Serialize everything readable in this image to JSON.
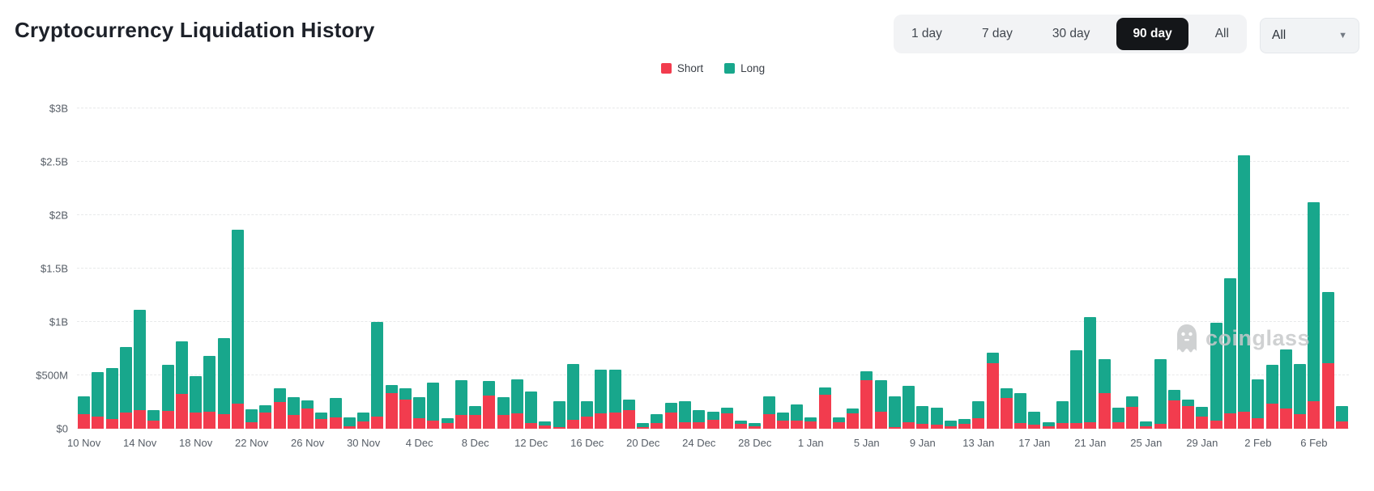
{
  "header": {
    "title": "Cryptocurrency Liquidation History",
    "range_buttons": [
      {
        "label": "1 day",
        "selected": false
      },
      {
        "label": "7 day",
        "selected": false
      },
      {
        "label": "30 day",
        "selected": false
      },
      {
        "label": "90 day",
        "selected": true
      },
      {
        "label": "All",
        "selected": false
      }
    ],
    "filter_dropdown": {
      "value": "All"
    }
  },
  "legend": [
    {
      "label": "Short",
      "color": "#f23c4e"
    },
    {
      "label": "Long",
      "color": "#18a78c"
    }
  ],
  "watermark": {
    "text": "coinglass"
  },
  "chart_data": {
    "type": "bar",
    "stacked": true,
    "title": "Cryptocurrency Liquidation History",
    "unit": "USD millions",
    "ylim": [
      0,
      3000
    ],
    "grid": "horizontal-dashed",
    "legend_position": "top-center",
    "y_ticks": [
      "$0",
      "$500M",
      "$1B",
      "$1.5B",
      "$2B",
      "$2.5B",
      "$3B"
    ],
    "x_tick_every": 4,
    "x_tick_labels": [
      "10 Nov",
      "14 Nov",
      "18 Nov",
      "22 Nov",
      "26 Nov",
      "30 Nov",
      "4 Dec",
      "8 Dec",
      "12 Dec",
      "16 Dec",
      "20 Dec",
      "24 Dec",
      "28 Dec",
      "1 Jan",
      "5 Jan",
      "9 Jan",
      "13 Jan",
      "17 Jan",
      "21 Jan",
      "25 Jan",
      "29 Jan",
      "2 Feb",
      "6 Feb"
    ],
    "categories": [
      "10 Nov",
      "11 Nov",
      "12 Nov",
      "13 Nov",
      "14 Nov",
      "15 Nov",
      "16 Nov",
      "17 Nov",
      "18 Nov",
      "19 Nov",
      "20 Nov",
      "21 Nov",
      "22 Nov",
      "23 Nov",
      "24 Nov",
      "25 Nov",
      "26 Nov",
      "27 Nov",
      "28 Nov",
      "29 Nov",
      "30 Nov",
      "1 Dec",
      "2 Dec",
      "3 Dec",
      "4 Dec",
      "5 Dec",
      "6 Dec",
      "7 Dec",
      "8 Dec",
      "9 Dec",
      "10 Dec",
      "11 Dec",
      "12 Dec",
      "13 Dec",
      "14 Dec",
      "15 Dec",
      "16 Dec",
      "17 Dec",
      "18 Dec",
      "19 Dec",
      "20 Dec",
      "21 Dec",
      "22 Dec",
      "23 Dec",
      "24 Dec",
      "25 Dec",
      "26 Dec",
      "27 Dec",
      "28 Dec",
      "29 Dec",
      "30 Dec",
      "31 Dec",
      "1 Jan",
      "2 Jan",
      "3 Jan",
      "4 Jan",
      "5 Jan",
      "6 Jan",
      "7 Jan",
      "8 Jan",
      "9 Jan",
      "10 Jan",
      "11 Jan",
      "12 Jan",
      "13 Jan",
      "14 Jan",
      "15 Jan",
      "16 Jan",
      "17 Jan",
      "18 Jan",
      "19 Jan",
      "20 Jan",
      "21 Jan",
      "22 Jan",
      "23 Jan",
      "24 Jan",
      "25 Jan",
      "26 Jan",
      "27 Jan",
      "28 Jan",
      "29 Jan",
      "30 Jan",
      "31 Jan",
      "1 Feb",
      "2 Feb",
      "3 Feb",
      "4 Feb",
      "5 Feb",
      "6 Feb",
      "7 Feb",
      "8 Feb"
    ],
    "series": [
      {
        "name": "Short",
        "color": "#f23c4e",
        "values": [
          135,
          110,
          90,
          152,
          173,
          75,
          170,
          325,
          150,
          158,
          135,
          234,
          60,
          150,
          250,
          126,
          186,
          93,
          105,
          20,
          68,
          110,
          337,
          276,
          100,
          75,
          55,
          126,
          126,
          310,
          126,
          143,
          50,
          30,
          15,
          85,
          110,
          143,
          150,
          176,
          18,
          55,
          151,
          60,
          60,
          80,
          143,
          43,
          25,
          136,
          75,
          75,
          68,
          319,
          60,
          143,
          452,
          161,
          15,
          60,
          43,
          40,
          25,
          43,
          100,
          613,
          287,
          50,
          35,
          25,
          50,
          55,
          60,
          332,
          60,
          201,
          25,
          43,
          269,
          211,
          110,
          75,
          143,
          156,
          100,
          236,
          193,
          136,
          256,
          613,
          68
        ]
      },
      {
        "name": "Long",
        "color": "#18a78c",
        "values": [
          165,
          420,
          476,
          610,
          942,
          98,
          425,
          495,
          340,
          522,
          717,
          1629,
          121,
          69,
          130,
          168,
          83,
          58,
          181,
          90,
          83,
          887,
          70,
          106,
          194,
          357,
          45,
          326,
          85,
          135,
          168,
          319,
          302,
          38,
          246,
          518,
          151,
          410,
          403,
          100,
          32,
          81,
          93,
          196,
          116,
          81,
          51,
          32,
          30,
          166,
          76,
          151,
          42,
          68,
          50,
          43,
          86,
          291,
          287,
          342,
          168,
          155,
          50,
          50,
          161,
          101,
          90,
          287,
          126,
          35,
          211,
          679,
          988,
          321,
          134,
          101,
          43,
          610,
          93,
          65,
          96,
          915,
          1264,
          2407,
          362,
          359,
          553,
          467,
          1865,
          668,
          143
        ]
      }
    ]
  }
}
